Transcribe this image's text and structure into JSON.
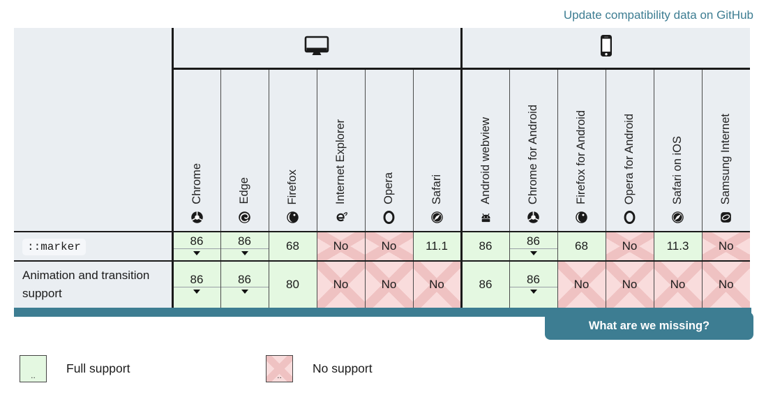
{
  "link": {
    "label": "Update compatibility data on GitHub"
  },
  "table": {
    "groups": [
      {
        "label": "desktop",
        "icon": "desktop-icon",
        "span": 6
      },
      {
        "label": "mobile",
        "icon": "mobile-icon",
        "span": 6
      }
    ],
    "browsers": [
      {
        "name": "Chrome",
        "icon": "chrome-icon"
      },
      {
        "name": "Edge",
        "icon": "edge-icon"
      },
      {
        "name": "Firefox",
        "icon": "firefox-icon"
      },
      {
        "name": "Internet Explorer",
        "icon": "internet-explorer-icon"
      },
      {
        "name": "Opera",
        "icon": "opera-icon"
      },
      {
        "name": "Safari",
        "icon": "safari-icon"
      },
      {
        "name": "Android webview",
        "icon": "android-icon"
      },
      {
        "name": "Chrome for Android",
        "icon": "chrome-icon"
      },
      {
        "name": "Firefox for Android",
        "icon": "firefox-icon"
      },
      {
        "name": "Opera for Android",
        "icon": "opera-icon"
      },
      {
        "name": "Safari on iOS",
        "icon": "safari-icon"
      },
      {
        "name": "Samsung Internet",
        "icon": "samsung-internet-icon"
      }
    ],
    "rows": [
      {
        "feature": "::marker",
        "is_code": true,
        "cells": [
          {
            "value": "86",
            "support": "full",
            "note": true
          },
          {
            "value": "86",
            "support": "full",
            "note": true
          },
          {
            "value": "68",
            "support": "full",
            "note": false
          },
          {
            "value": "No",
            "support": "none",
            "note": false
          },
          {
            "value": "No",
            "support": "none",
            "note": false
          },
          {
            "value": "11.1",
            "support": "full",
            "note": false
          },
          {
            "value": "86",
            "support": "full",
            "note": false
          },
          {
            "value": "86",
            "support": "full",
            "note": true
          },
          {
            "value": "68",
            "support": "full",
            "note": false
          },
          {
            "value": "No",
            "support": "none",
            "note": false
          },
          {
            "value": "11.3",
            "support": "full",
            "note": false
          },
          {
            "value": "No",
            "support": "none",
            "note": false
          }
        ]
      },
      {
        "feature": "Animation and transition support",
        "is_code": false,
        "cells": [
          {
            "value": "86",
            "support": "full",
            "note": true
          },
          {
            "value": "86",
            "support": "full",
            "note": true
          },
          {
            "value": "80",
            "support": "full",
            "note": false
          },
          {
            "value": "No",
            "support": "none",
            "note": false
          },
          {
            "value": "No",
            "support": "none",
            "note": false
          },
          {
            "value": "No",
            "support": "none",
            "note": false
          },
          {
            "value": "86",
            "support": "full",
            "note": false
          },
          {
            "value": "86",
            "support": "full",
            "note": true
          },
          {
            "value": "No",
            "support": "none",
            "note": false
          },
          {
            "value": "No",
            "support": "none",
            "note": false
          },
          {
            "value": "No",
            "support": "none",
            "note": false
          },
          {
            "value": "No",
            "support": "none",
            "note": false
          }
        ]
      }
    ]
  },
  "footer": {
    "button_label": "What are we missing?"
  },
  "legend": [
    {
      "label": "Full support",
      "type": "full",
      "box_text": ".."
    },
    {
      "label": "No support",
      "type": "none",
      "box_text": ".."
    }
  ],
  "colors": {
    "accent_teal": "#3d7d92",
    "full_support_bg": "#e4f8e1",
    "no_support_bg": "#f9dcdc",
    "no_support_stripe": "#efc2c2",
    "header_bg": "#eaeef2"
  }
}
